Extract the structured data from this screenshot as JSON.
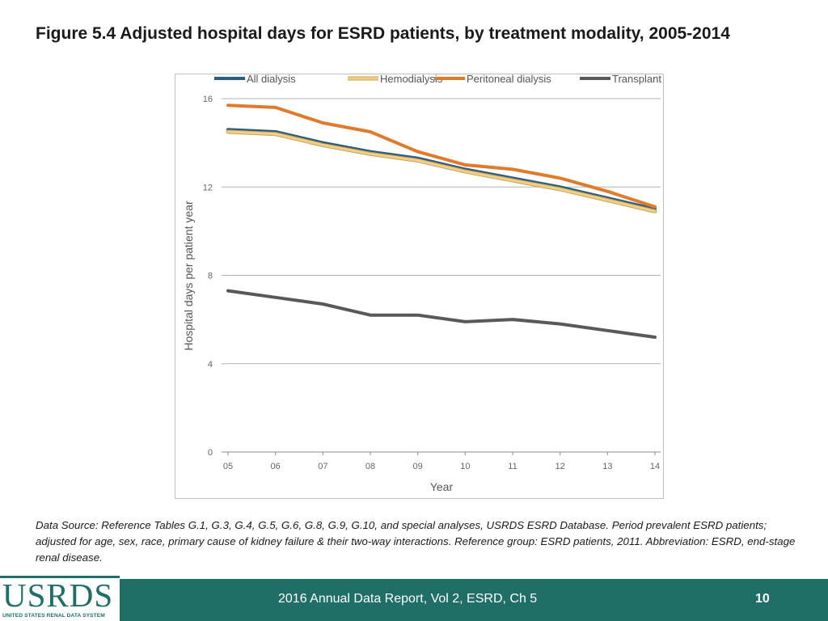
{
  "title": "Figure 5.4 Adjusted hospital days for ESRD patients, by treatment modality, 2005-2014",
  "source_note": "Data Source: Reference Tables G.1, G.3, G.4, G.5, G.6, G.8, G.9, G.10, and special analyses, USRDS ESRD Database. Period prevalent ESRD patients; adjusted for age, sex, race, primary cause of kidney failure & their two-way interactions. Reference group: ESRD patients, 2011. Abbreviation: ESRD, end-stage renal disease.",
  "footer": {
    "report_label": "2016 Annual Data Report, Vol 2, ESRD, Ch 5",
    "page_number": "10"
  },
  "logo": {
    "wordmark": "USRDS",
    "subtitle": "UNITED STATES RENAL DATA SYSTEM"
  },
  "colors": {
    "footer_bg": "#1f6f67",
    "all_dialysis": "#2b5d82",
    "hemodialysis": "#f2cf86",
    "peritoneal": "#e07b2e",
    "transplant": "#595959"
  },
  "chart_data": {
    "type": "line",
    "title": "",
    "xlabel": "Year",
    "ylabel": "Hospital days per patient year",
    "categories": [
      "05",
      "06",
      "07",
      "08",
      "09",
      "10",
      "11",
      "12",
      "13",
      "14"
    ],
    "ylim": [
      0,
      16
    ],
    "yticks": [
      0,
      4,
      8,
      12,
      16
    ],
    "grid": true,
    "legend_position": "top",
    "series": [
      {
        "name": "All dialysis",
        "color": "#2b5d82",
        "values": [
          14.6,
          14.5,
          14.0,
          13.6,
          13.3,
          12.8,
          12.4,
          12.0,
          11.5,
          11.0
        ]
      },
      {
        "name": "Hemodialysis",
        "color": "#f2cf86",
        "values": [
          14.5,
          14.4,
          13.9,
          13.5,
          13.2,
          12.7,
          12.3,
          11.9,
          11.4,
          10.9
        ]
      },
      {
        "name": "Peritoneal dialysis",
        "color": "#e07b2e",
        "values": [
          15.7,
          15.6,
          14.9,
          14.5,
          13.6,
          13.0,
          12.8,
          12.4,
          11.8,
          11.1
        ]
      },
      {
        "name": "Transplant",
        "color": "#595959",
        "values": [
          7.3,
          7.0,
          6.7,
          6.2,
          6.2,
          5.9,
          6.0,
          5.8,
          5.5,
          5.2
        ]
      }
    ]
  }
}
